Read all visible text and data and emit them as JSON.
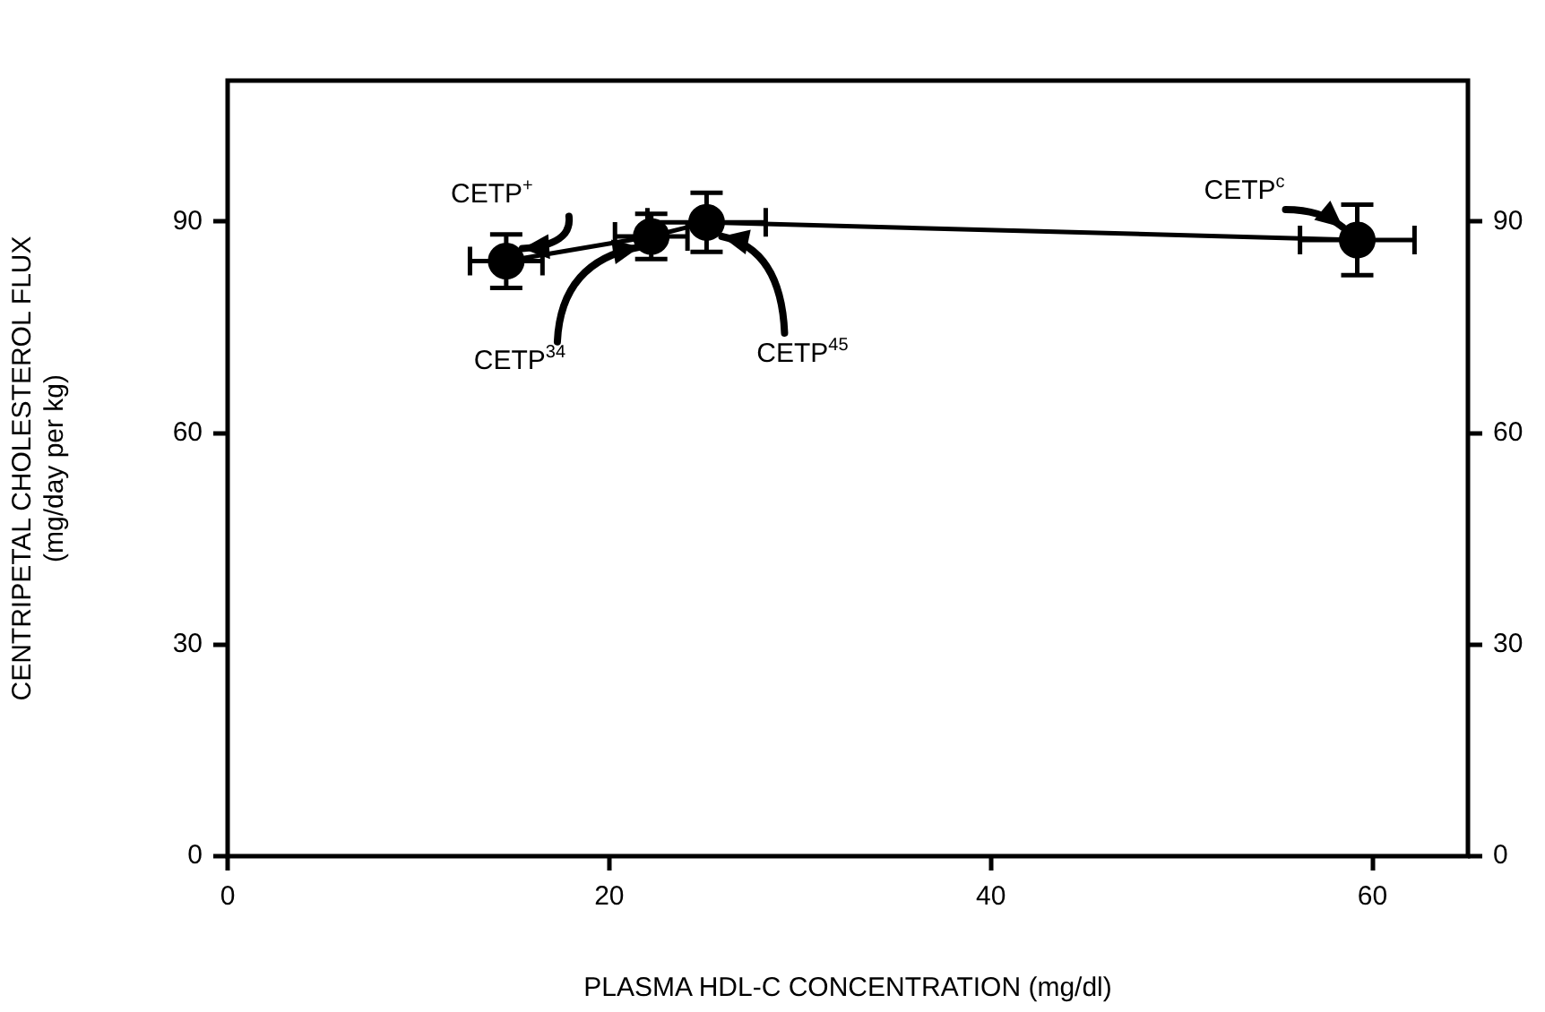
{
  "chart_data": {
    "type": "line",
    "xlabel": "PLASMA HDL-C CONCENTRATION (mg/dl)",
    "ylabel": "CENTRIPETAL CHOLESTEROL FLUX\n(mg/day per kg)",
    "x": [
      14.6,
      22.2,
      25.1,
      59.2
    ],
    "series": [
      {
        "color": "#000000",
        "values": [
          84.4,
          87.9,
          89.9,
          87.4
        ],
        "errors": [
          3.8,
          3.2,
          4.2,
          5
        ],
        "xerrors": [
          1.9,
          1.9,
          3.1,
          3
        ]
      }
    ],
    "xlim": [
      0,
      65
    ],
    "xticks": [
      0,
      20,
      40,
      60
    ],
    "ylim": [
      0,
      110
    ],
    "yticks": [
      0,
      30,
      60,
      90
    ],
    "y2lim": [
      0,
      110
    ],
    "y2ticks": [
      0,
      30,
      60,
      90
    ],
    "annotations": [
      {
        "text": "CETP$^{+}$",
        "x": 14.6,
        "y": 84.4
      },
      {
        "text": "CETP$^{34}$",
        "x": 21.6,
        "y": 86.4
      },
      {
        "text": "CETP$^{45}$",
        "x": 25.9,
        "y": 87.9
      },
      {
        "text": "CETP$^{c}$",
        "x": 59.2,
        "y": 87.4
      }
    ],
    "grid": false,
    "legend": false,
    "marker": "circle",
    "line_style": "solid"
  }
}
